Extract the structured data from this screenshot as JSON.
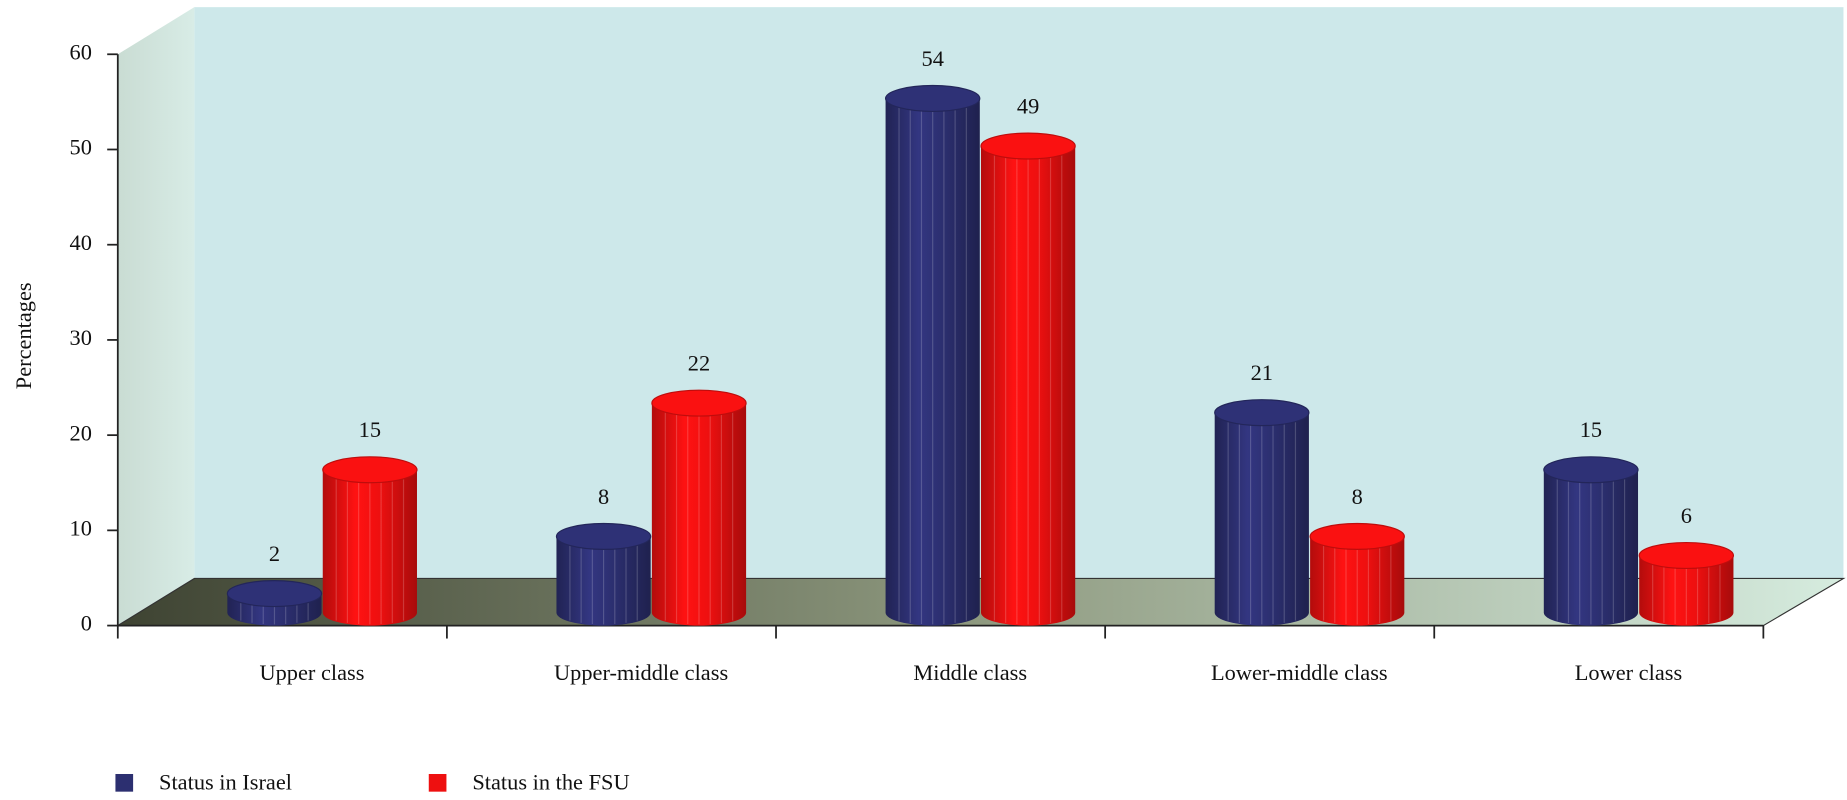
{
  "chart_data": {
    "type": "bar3d",
    "y_label": "Percentages",
    "categories": [
      "Upper class",
      "Upper-middle class",
      "Middle class",
      "Lower-middle class",
      "Lower class"
    ],
    "series": [
      {
        "name": "Status in Israel",
        "color": "#2c2f70",
        "values": [
          2,
          8,
          54,
          21,
          15
        ]
      },
      {
        "name": "Status in the FSU",
        "color": "#ee1010",
        "values": [
          15,
          22,
          49,
          8,
          6
        ]
      }
    ],
    "ylim": [
      0,
      60
    ],
    "yticks": [
      0,
      10,
      20,
      30,
      40,
      50,
      60
    ],
    "legend": "bottom-left"
  }
}
